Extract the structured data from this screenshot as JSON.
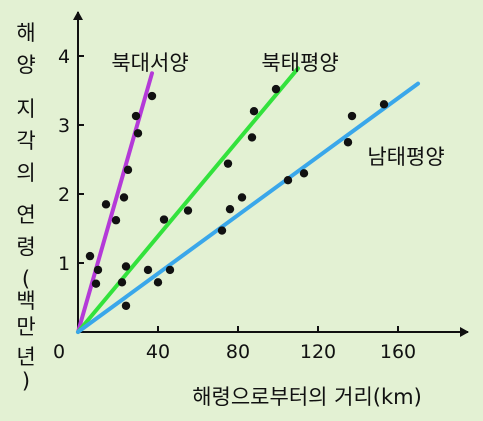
{
  "chart_data": {
    "type": "scatter",
    "title": "",
    "xlabel": "해령으로부터의 거리(km)",
    "ylabel_chars": [
      "해",
      "양",
      "지",
      "각",
      "의",
      "연",
      "령",
      "(",
      "백",
      "만",
      "년",
      ")"
    ],
    "ylabel": "해양 지각의 연령(백만 년)",
    "origin_label": "0",
    "xlim": [
      0,
      175
    ],
    "ylim": [
      0,
      4.6
    ],
    "xticks": [
      40,
      80,
      120,
      160
    ],
    "xtick_labels": [
      "40",
      "80",
      "120",
      "160"
    ],
    "yticks": [
      1,
      2,
      3,
      4
    ],
    "ytick_labels": [
      "1",
      "2",
      "3",
      "4"
    ],
    "grid": false,
    "series": [
      {
        "name": "북대서양",
        "color": "#b43ad8",
        "line": [
          [
            0,
            0
          ],
          [
            37,
            3.75
          ]
        ],
        "points": [
          [
            6,
            1.1
          ],
          [
            9,
            0.7
          ],
          [
            10,
            0.9
          ],
          [
            14,
            1.85
          ],
          [
            19,
            1.62
          ],
          [
            22,
            0.72
          ],
          [
            23,
            1.95
          ],
          [
            24,
            0.95
          ],
          [
            25,
            2.35
          ],
          [
            24,
            0.38
          ],
          [
            29,
            3.13
          ],
          [
            30,
            2.88
          ],
          [
            37,
            3.42
          ]
        ]
      },
      {
        "name": "북태평양",
        "color": "#33e23c",
        "line": [
          [
            0,
            0
          ],
          [
            110,
            3.82
          ]
        ],
        "points": [
          [
            35,
            0.9
          ],
          [
            40,
            0.72
          ],
          [
            43,
            1.63
          ],
          [
            46,
            0.9
          ],
          [
            55,
            1.76
          ],
          [
            72,
            1.47
          ],
          [
            75,
            2.44
          ],
          [
            76,
            1.78
          ],
          [
            82,
            1.95
          ],
          [
            87,
            2.82
          ],
          [
            88,
            3.2
          ],
          [
            99,
            3.52
          ]
        ]
      },
      {
        "name": "남태평양",
        "color": "#3aa7ea",
        "line": [
          [
            0,
            0
          ],
          [
            170,
            3.6
          ]
        ],
        "points": [
          [
            105,
            2.2
          ],
          [
            113,
            2.3
          ],
          [
            135,
            2.75
          ],
          [
            137,
            3.13
          ],
          [
            153,
            3.3
          ]
        ]
      }
    ]
  }
}
